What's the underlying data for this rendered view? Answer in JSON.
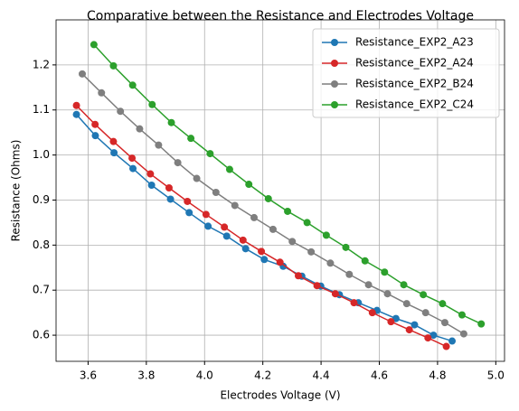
{
  "chart_data": {
    "type": "line",
    "title": "Comparative between the Resistance and Electrodes Voltage",
    "x_label": "Electrodes Voltage (V)",
    "y_label": "Resistance (Ohms)",
    "xlim": [
      3.49,
      5.03
    ],
    "ylim": [
      0.542,
      1.3
    ],
    "xticks": [
      3.6,
      3.8,
      {
        "value": 4.0,
        "label": "4.0"
      },
      4.2,
      4.4,
      4.6,
      4.8,
      {
        "value": 5.0,
        "label": "5.0"
      }
    ],
    "yticks": [
      0.6,
      0.7,
      0.8,
      0.9,
      {
        "value": 1.0,
        "label": "1.0"
      },
      1.1,
      1.2
    ],
    "grid": true,
    "legend": "upper right",
    "series": [
      {
        "name": "Resistance_EXP2_A23",
        "color": "#1f77b4",
        "x": [
          3.56,
          3.625,
          3.689,
          3.754,
          3.818,
          3.883,
          3.947,
          4.012,
          4.076,
          4.141,
          4.205,
          4.27,
          4.334,
          4.399,
          4.463,
          4.528,
          4.592,
          4.657,
          4.721,
          4.786,
          4.85
        ],
        "values": [
          1.09,
          1.043,
          1.005,
          0.97,
          0.933,
          0.902,
          0.872,
          0.842,
          0.82,
          0.792,
          0.768,
          0.753,
          0.731,
          0.709,
          0.69,
          0.672,
          0.655,
          0.637,
          0.623,
          0.6,
          0.587
        ]
      },
      {
        "name": "Resistance_EXP2_A24",
        "color": "#d62728",
        "x": [
          3.56,
          3.624,
          3.687,
          3.751,
          3.814,
          3.878,
          3.941,
          4.005,
          4.068,
          4.132,
          4.195,
          4.259,
          4.322,
          4.386,
          4.449,
          4.513,
          4.576,
          4.64,
          4.703,
          4.767,
          4.83
        ],
        "values": [
          1.11,
          1.068,
          1.03,
          0.993,
          0.958,
          0.927,
          0.897,
          0.868,
          0.84,
          0.811,
          0.786,
          0.762,
          0.732,
          0.71,
          0.692,
          0.672,
          0.65,
          0.63,
          0.612,
          0.594,
          0.575
        ]
      },
      {
        "name": "Resistance_EXP2_B24",
        "color": "#7f7f7f",
        "x": [
          3.58,
          3.646,
          3.711,
          3.777,
          3.842,
          3.908,
          3.973,
          4.039,
          4.104,
          4.17,
          4.235,
          4.301,
          4.366,
          4.432,
          4.497,
          4.563,
          4.628,
          4.694,
          4.759,
          4.825,
          4.89
        ],
        "values": [
          1.18,
          1.138,
          1.097,
          1.058,
          1.022,
          0.983,
          0.948,
          0.917,
          0.888,
          0.861,
          0.835,
          0.808,
          0.785,
          0.76,
          0.735,
          0.712,
          0.692,
          0.67,
          0.65,
          0.628,
          0.603
        ]
      },
      {
        "name": "Resistance_EXP2_C24",
        "color": "#2ca02c",
        "x": [
          3.62,
          3.687,
          3.753,
          3.82,
          3.886,
          3.953,
          4.019,
          4.086,
          4.152,
          4.219,
          4.285,
          4.352,
          4.418,
          4.485,
          4.551,
          4.618,
          4.684,
          4.751,
          4.817,
          4.884,
          4.95
        ],
        "values": [
          1.245,
          1.198,
          1.155,
          1.112,
          1.072,
          1.037,
          1.003,
          0.968,
          0.935,
          0.903,
          0.875,
          0.85,
          0.822,
          0.795,
          0.765,
          0.74,
          0.712,
          0.69,
          0.67,
          0.645,
          0.625
        ]
      }
    ]
  }
}
